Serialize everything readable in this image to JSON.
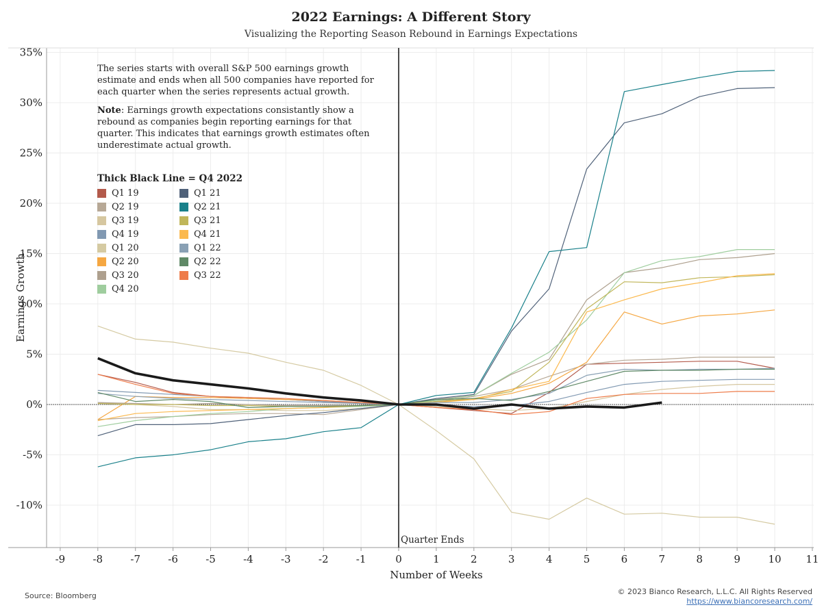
{
  "title": "2022 Earnings: A Different Story",
  "subtitle": "Visualizing the Reporting Season Rebound in Earnings Expectations",
  "notes": {
    "intro": "The series starts with overall S&P 500 earnings growth estimate and ends when all 500 companies have reported for each quarter when the series represents actual growth.",
    "note_label": "Note",
    "note_text": ": Earnings growth expectations consistantly show a rebound as companies begin reporting earnings for that quarter. This indicates that earnings growth estimates often underestimate actual growth."
  },
  "legend_title": "Thick Black Line = Q4 2022",
  "quarter_label": "Quarter Ends",
  "source": "Source: Bloomberg",
  "copyright": "© 2023 Bianco Research, L.L.C. All Rights Reserved",
  "url": "https://www.biancoresearch.com/",
  "chart_data": {
    "type": "line",
    "xlabel": "Number of Weeks",
    "ylabel": "Earnings Growth",
    "xlim": [
      -9,
      11
    ],
    "ylim": [
      -14,
      35
    ],
    "xticks": [
      -9,
      -8,
      -7,
      -6,
      -5,
      -4,
      -3,
      -2,
      -1,
      0,
      1,
      2,
      3,
      4,
      5,
      6,
      7,
      8,
      9,
      10,
      11
    ],
    "yticks": [
      -10,
      -5,
      0,
      5,
      10,
      15,
      20,
      25,
      30,
      35
    ],
    "ytick_labels": [
      "-10%",
      "-5%",
      "0%",
      "5%",
      "10%",
      "15%",
      "20%",
      "25%",
      "30%",
      "35%"
    ],
    "grid": true,
    "series": [
      {
        "name": "Q1 19",
        "color": "#b35a4b",
        "x": [
          -8,
          -7,
          -6,
          -5,
          -4,
          -3,
          -2,
          -1,
          0,
          1,
          2,
          3,
          4,
          5,
          6,
          7,
          8,
          9,
          10
        ],
        "y": [
          3.0,
          2.2,
          1.2,
          0.8,
          0.6,
          0.5,
          0.3,
          0.1,
          0,
          -0.3,
          -0.6,
          -0.9,
          1.2,
          4.0,
          4.1,
          4.2,
          4.3,
          4.3,
          3.6
        ]
      },
      {
        "name": "Q2 19",
        "color": "#b7a896",
        "x": [
          -8,
          -7,
          -6,
          -5,
          -4,
          -3,
          -2,
          -1,
          0,
          1,
          2,
          3,
          4,
          5,
          6,
          7,
          8,
          9,
          10
        ],
        "y": [
          -1.5,
          -1.3,
          -1.2,
          -1.0,
          -0.9,
          -0.9,
          -1.0,
          -0.5,
          0,
          0.3,
          0.8,
          1.5,
          2.8,
          4.0,
          4.4,
          4.5,
          4.7,
          4.7,
          4.7
        ]
      },
      {
        "name": "Q3 19",
        "color": "#d6c7a0",
        "x": [
          -8,
          -7,
          -6,
          -5,
          -4,
          -3,
          -2,
          -1,
          0,
          1,
          2,
          3,
          4,
          5,
          6,
          7,
          8,
          9,
          10
        ],
        "y": [
          0.2,
          0.0,
          -0.2,
          -0.5,
          -0.5,
          -0.6,
          -0.6,
          -0.4,
          0,
          -0.2,
          -0.4,
          -0.6,
          -0.4,
          0.3,
          1.0,
          1.5,
          1.8,
          2.0,
          2.0
        ]
      },
      {
        "name": "Q4 19",
        "color": "#8199b2",
        "x": [
          -8,
          -7,
          -6,
          -5,
          -4,
          -3,
          -2,
          -1,
          0,
          1,
          2,
          3,
          4,
          5,
          6,
          7,
          8,
          9,
          10
        ],
        "y": [
          1.4,
          1.2,
          1.0,
          0.8,
          0.7,
          0.5,
          0.3,
          0.2,
          0,
          -0.1,
          -0.2,
          -0.1,
          0.3,
          1.2,
          2.0,
          2.3,
          2.4,
          2.5,
          2.5
        ]
      },
      {
        "name": "Q1 20",
        "color": "#d5caa2",
        "x": [
          -8,
          -7,
          -6,
          -5,
          -4,
          -3,
          -2,
          -1,
          0,
          1,
          2,
          3,
          4,
          5,
          6,
          7,
          8,
          9,
          10
        ],
        "y": [
          7.8,
          6.5,
          6.2,
          5.6,
          5.1,
          4.2,
          3.4,
          1.9,
          0,
          -2.6,
          -5.4,
          -10.7,
          -11.4,
          -9.3,
          -10.9,
          -10.8,
          -11.2,
          -11.2,
          -11.9
        ]
      },
      {
        "name": "Q2 20",
        "color": "#f5a742",
        "x": [
          -8,
          -7,
          -6,
          -5,
          -4,
          -3,
          -2,
          -1,
          0,
          1,
          2,
          3,
          4,
          5,
          6,
          7,
          8,
          9,
          10
        ],
        "y": [
          -1.5,
          0.8,
          0.7,
          0.7,
          0.6,
          0.5,
          0.4,
          0.2,
          0,
          0.3,
          0.5,
          1.1,
          2.1,
          4.2,
          9.2,
          8.0,
          8.8,
          9.0,
          9.4
        ]
      },
      {
        "name": "Q3 20",
        "color": "#aea08e",
        "x": [
          -8,
          -7,
          -6,
          -5,
          -4,
          -3,
          -2,
          -1,
          0,
          1,
          2,
          3,
          4,
          5,
          6,
          7,
          8,
          9,
          10
        ],
        "y": [
          0.2,
          0.1,
          0.0,
          0.1,
          0.0,
          -0.1,
          -0.1,
          -0.1,
          0,
          0.5,
          0.9,
          3.0,
          4.5,
          10.4,
          13.1,
          13.6,
          14.4,
          14.6,
          15.0
        ]
      },
      {
        "name": "Q4 20",
        "color": "#9fcd9e",
        "x": [
          -8,
          -7,
          -6,
          -5,
          -4,
          -3,
          -2,
          -1,
          0,
          1,
          2,
          3,
          4,
          5,
          6,
          7,
          8,
          9,
          10
        ],
        "y": [
          -2.2,
          -1.6,
          -1.2,
          -0.9,
          -0.7,
          -0.4,
          -0.3,
          -0.2,
          0,
          0.4,
          0.9,
          3.1,
          5.2,
          8.4,
          13.1,
          14.3,
          14.7,
          15.4,
          15.4
        ]
      },
      {
        "name": "Q1 21",
        "color": "#4f6179",
        "x": [
          -8,
          -7,
          -6,
          -5,
          -4,
          -3,
          -2,
          -1,
          0,
          1,
          2,
          3,
          4,
          5,
          6,
          7,
          8,
          9,
          10
        ],
        "y": [
          -3.1,
          -2.0,
          -2.0,
          -1.9,
          -1.5,
          -1.1,
          -0.8,
          -0.4,
          0,
          0.6,
          1.0,
          7.3,
          11.5,
          23.4,
          28.0,
          28.9,
          30.6,
          31.4,
          31.5
        ]
      },
      {
        "name": "Q2 21",
        "color": "#19808a",
        "x": [
          -8,
          -7,
          -6,
          -5,
          -4,
          -3,
          -2,
          -1,
          0,
          1,
          2,
          3,
          4,
          5,
          6,
          7,
          8,
          9,
          10
        ],
        "y": [
          -6.2,
          -5.3,
          -5.0,
          -4.5,
          -3.7,
          -3.4,
          -2.7,
          -2.3,
          0,
          0.9,
          1.2,
          7.6,
          15.2,
          15.6,
          31.1,
          31.8,
          32.5,
          33.1,
          33.2
        ]
      },
      {
        "name": "Q3 21",
        "color": "#c0b65a",
        "x": [
          -8,
          -7,
          -6,
          -5,
          -4,
          -3,
          -2,
          -1,
          0,
          1,
          2,
          3,
          4,
          5,
          6,
          7,
          8,
          9,
          10
        ],
        "y": [
          0.1,
          0.0,
          0.0,
          -0.1,
          -0.1,
          -0.2,
          -0.2,
          -0.1,
          0,
          0.3,
          0.6,
          1.3,
          4.2,
          9.5,
          12.2,
          12.1,
          12.6,
          12.7,
          12.9
        ]
      },
      {
        "name": "Q4 21",
        "color": "#fbb94e",
        "x": [
          -8,
          -7,
          -6,
          -5,
          -4,
          -3,
          -2,
          -1,
          0,
          1,
          2,
          3,
          4,
          5,
          6,
          7,
          8,
          9,
          10
        ],
        "y": [
          -1.6,
          -0.9,
          -0.7,
          -0.6,
          -0.5,
          -0.4,
          -0.3,
          -0.1,
          0,
          0.2,
          0.5,
          1.5,
          2.3,
          9.2,
          10.4,
          11.5,
          12.1,
          12.8,
          13.0
        ]
      },
      {
        "name": "Q1 22",
        "color": "#89a0b4",
        "x": [
          -8,
          -7,
          -6,
          -5,
          -4,
          -3,
          -2,
          -1,
          0,
          1,
          2,
          3,
          4,
          5,
          6,
          7,
          8,
          9,
          10
        ],
        "y": [
          1.1,
          0.8,
          0.6,
          0.5,
          0.4,
          0.3,
          0.2,
          0.1,
          0,
          0.2,
          0.2,
          0.5,
          1.1,
          2.9,
          3.5,
          3.4,
          3.5,
          3.5,
          3.6
        ]
      },
      {
        "name": "Q2 22",
        "color": "#5f8966",
        "x": [
          -8,
          -7,
          -6,
          -5,
          -4,
          -3,
          -2,
          -1,
          0,
          1,
          2,
          3,
          4,
          5,
          6,
          7,
          8,
          9,
          10
        ],
        "y": [
          1.2,
          0.3,
          0.5,
          0.3,
          -0.3,
          -0.2,
          -0.2,
          -0.1,
          0,
          0.5,
          0.6,
          0.4,
          1.3,
          2.3,
          3.3,
          3.4,
          3.4,
          3.5,
          3.5
        ]
      },
      {
        "name": "Q3 22",
        "color": "#ee7b49",
        "x": [
          -8,
          -7,
          -6,
          -5,
          -4,
          -3,
          -2,
          -1,
          0,
          1,
          2,
          3,
          4,
          5,
          6,
          7,
          8,
          9,
          10
        ],
        "y": [
          3.0,
          2.0,
          1.1,
          0.8,
          0.7,
          0.6,
          0.4,
          0.2,
          0,
          -0.3,
          -0.5,
          -1.0,
          -0.7,
          0.6,
          1.0,
          1.1,
          1.1,
          1.3,
          1.3
        ]
      },
      {
        "name": "Q4 22",
        "thick": true,
        "color": "#1a1a1a",
        "x": [
          -8,
          -7,
          -6,
          -5,
          -4,
          -3,
          -2,
          -1,
          0,
          1,
          2,
          3,
          4,
          5,
          6,
          7
        ],
        "y": [
          4.6,
          3.1,
          2.4,
          2.0,
          1.6,
          1.1,
          0.7,
          0.4,
          0,
          0.0,
          -0.4,
          0.0,
          -0.4,
          -0.2,
          -0.3,
          0.2
        ]
      }
    ]
  }
}
